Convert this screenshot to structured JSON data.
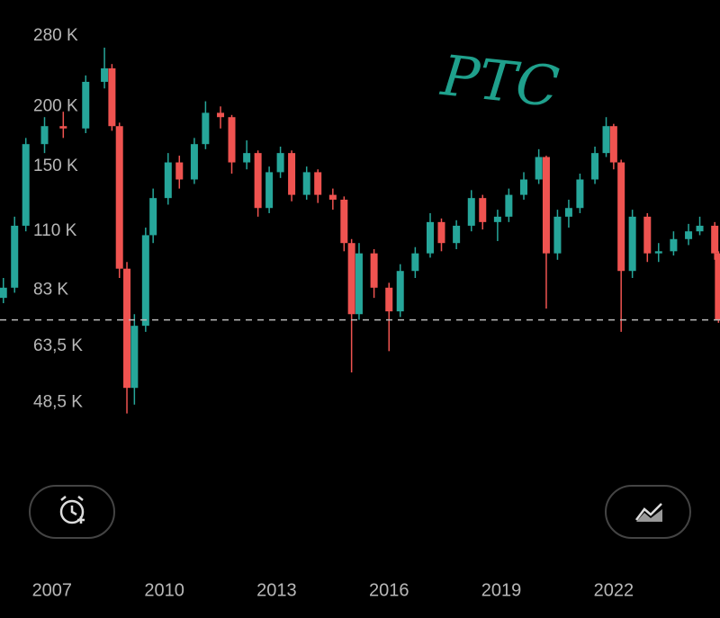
{
  "chart_data": {
    "type": "candlestick",
    "x": [
      2005.7,
      2006.0,
      2006.3,
      2006.8,
      2007.3,
      2007.9,
      2008.4,
      2008.6,
      2008.8,
      2009.0,
      2009.2,
      2009.5,
      2009.7,
      2010.1,
      2010.4,
      2010.8,
      2011.1,
      2011.5,
      2011.8,
      2012.2,
      2012.5,
      2012.8,
      2013.1,
      2013.4,
      2013.8,
      2014.1,
      2014.5,
      2014.8,
      2015.0,
      2015.2,
      2015.6,
      2016.0,
      2016.3,
      2016.7,
      2017.1,
      2017.4,
      2017.8,
      2018.2,
      2018.5,
      2018.9,
      2019.2,
      2019.6,
      2020.0,
      2020.2,
      2020.5,
      2020.8,
      2021.1,
      2021.5,
      2021.8,
      2022.0,
      2022.2,
      2022.5,
      2022.9,
      2023.2,
      2023.6,
      2024.0,
      2024.3,
      2024.7,
      2024.8
    ],
    "open": [
      80,
      84,
      113,
      167,
      182,
      180,
      225,
      240,
      182,
      92,
      52,
      70,
      108,
      129,
      153,
      141,
      167,
      194,
      190,
      153,
      160,
      123,
      146,
      160,
      131,
      146,
      131,
      128,
      104,
      74,
      99,
      84,
      75,
      91,
      99,
      115,
      104,
      113,
      129,
      115,
      118,
      131,
      141,
      157,
      99,
      118,
      123,
      141,
      160,
      182,
      153,
      91,
      118,
      99,
      100,
      106,
      110,
      113,
      99
    ],
    "high": [
      88,
      118,
      172,
      190,
      195,
      232,
      265,
      245,
      185,
      95,
      74,
      112,
      135,
      160,
      158,
      172,
      205,
      200,
      192,
      170,
      162,
      150,
      165,
      162,
      150,
      148,
      135,
      130,
      106,
      104,
      101,
      86,
      94,
      102,
      120,
      117,
      116,
      134,
      131,
      122,
      135,
      146,
      163,
      158,
      122,
      128,
      145,
      165,
      190,
      184,
      155,
      122,
      120,
      104,
      110,
      114,
      118,
      115,
      100
    ],
    "low": [
      78,
      82,
      110,
      160,
      172,
      176,
      218,
      178,
      88,
      46,
      48,
      68,
      104,
      125,
      135,
      138,
      163,
      180,
      145,
      148,
      118,
      120,
      142,
      127,
      128,
      126,
      122,
      100,
      56,
      72,
      80,
      62,
      73,
      88,
      97,
      100,
      101,
      110,
      111,
      105,
      115,
      128,
      138,
      76,
      96,
      112,
      120,
      138,
      157,
      148,
      68,
      88,
      95,
      95,
      98,
      103,
      108,
      96,
      71
    ],
    "close": [
      84,
      113,
      167,
      182,
      180,
      225,
      240,
      182,
      92,
      52,
      70,
      108,
      129,
      153,
      141,
      167,
      194,
      190,
      153,
      160,
      123,
      146,
      160,
      131,
      146,
      131,
      128,
      104,
      74,
      99,
      84,
      75,
      91,
      99,
      115,
      104,
      113,
      129,
      115,
      118,
      131,
      141,
      157,
      99,
      118,
      123,
      141,
      160,
      182,
      153,
      91,
      118,
      99,
      100,
      106,
      110,
      113,
      99,
      72
    ],
    "up_color": "#26a69a",
    "down_color": "#ef5350",
    "log_scale": true,
    "ylim": [
      44,
      330
    ],
    "yticks": [
      {
        "value": 48.5,
        "label": "48,5 K"
      },
      {
        "value": 63.5,
        "label": "63,5 K"
      },
      {
        "value": 83,
        "label": "83 K"
      },
      {
        "value": 110,
        "label": "110 K"
      },
      {
        "value": 150,
        "label": "150 K"
      },
      {
        "value": 200,
        "label": "200 K"
      },
      {
        "value": 280,
        "label": "280 K"
      }
    ],
    "xlim": [
      2005.61,
      2024.84
    ],
    "xticks": [
      2007,
      2010,
      2013,
      2016,
      2019,
      2022
    ],
    "price_line": 72,
    "annotation": "PTC"
  }
}
